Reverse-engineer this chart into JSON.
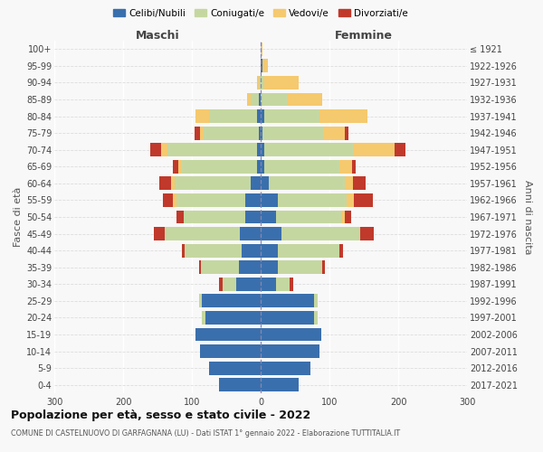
{
  "age_groups": [
    "0-4",
    "5-9",
    "10-14",
    "15-19",
    "20-24",
    "25-29",
    "30-34",
    "35-39",
    "40-44",
    "45-49",
    "50-54",
    "55-59",
    "60-64",
    "65-69",
    "70-74",
    "75-79",
    "80-84",
    "85-89",
    "90-94",
    "95-99",
    "100+"
  ],
  "birth_years": [
    "2017-2021",
    "2012-2016",
    "2007-2011",
    "2002-2006",
    "1997-2001",
    "1992-1996",
    "1987-1991",
    "1982-1986",
    "1977-1981",
    "1972-1976",
    "1967-1971",
    "1962-1966",
    "1957-1961",
    "1952-1956",
    "1947-1951",
    "1942-1946",
    "1937-1941",
    "1932-1936",
    "1927-1931",
    "1922-1926",
    "≤ 1921"
  ],
  "maschi_celibi": [
    60,
    75,
    88,
    95,
    80,
    85,
    35,
    32,
    28,
    30,
    22,
    22,
    15,
    5,
    5,
    3,
    5,
    3,
    0,
    0,
    0
  ],
  "maschi_coniugati": [
    0,
    0,
    0,
    0,
    5,
    5,
    20,
    55,
    82,
    110,
    90,
    100,
    110,
    110,
    130,
    80,
    70,
    12,
    2,
    0,
    0
  ],
  "maschi_vedovi": [
    0,
    0,
    0,
    0,
    0,
    0,
    0,
    0,
    0,
    0,
    0,
    5,
    5,
    5,
    10,
    5,
    20,
    5,
    3,
    0,
    0
  ],
  "maschi_divorziati": [
    0,
    0,
    0,
    0,
    0,
    0,
    5,
    3,
    5,
    15,
    10,
    15,
    18,
    8,
    15,
    8,
    0,
    0,
    0,
    0,
    0
  ],
  "femmine_celibi": [
    55,
    72,
    85,
    88,
    78,
    78,
    22,
    25,
    25,
    30,
    22,
    25,
    12,
    5,
    5,
    2,
    5,
    0,
    0,
    2,
    0
  ],
  "femmine_coniugati": [
    0,
    0,
    0,
    0,
    5,
    5,
    20,
    65,
    90,
    115,
    95,
    100,
    110,
    110,
    130,
    90,
    80,
    40,
    5,
    0,
    0
  ],
  "femmine_vedovi": [
    0,
    0,
    0,
    0,
    0,
    0,
    0,
    0,
    0,
    0,
    5,
    10,
    12,
    18,
    60,
    30,
    70,
    50,
    50,
    8,
    2
  ],
  "femmine_divorziati": [
    0,
    0,
    0,
    0,
    0,
    0,
    5,
    3,
    5,
    20,
    10,
    28,
    18,
    5,
    15,
    5,
    0,
    0,
    0,
    0,
    0
  ],
  "colors": {
    "celibi": "#3a6fad",
    "coniugati": "#c5d7a0",
    "vedovi": "#f5c96e",
    "divorziati": "#c0392b"
  },
  "title": "Popolazione per età, sesso e stato civile - 2022",
  "subtitle": "COMUNE DI CASTELNUOVO DI GARFAGNANA (LU) - Dati ISTAT 1° gennaio 2022 - Elaborazione TUTTITALIA.IT",
  "maschi_label": "Maschi",
  "femmine_label": "Femmine",
  "ylabel_left": "Fasce di età",
  "ylabel_right": "Anni di nascita",
  "xlim": 300,
  "bg_color": "#f8f8f8",
  "legend_labels": [
    "Celibi/Nubili",
    "Coniugati/e",
    "Vedovi/e",
    "Divorziati/e"
  ]
}
